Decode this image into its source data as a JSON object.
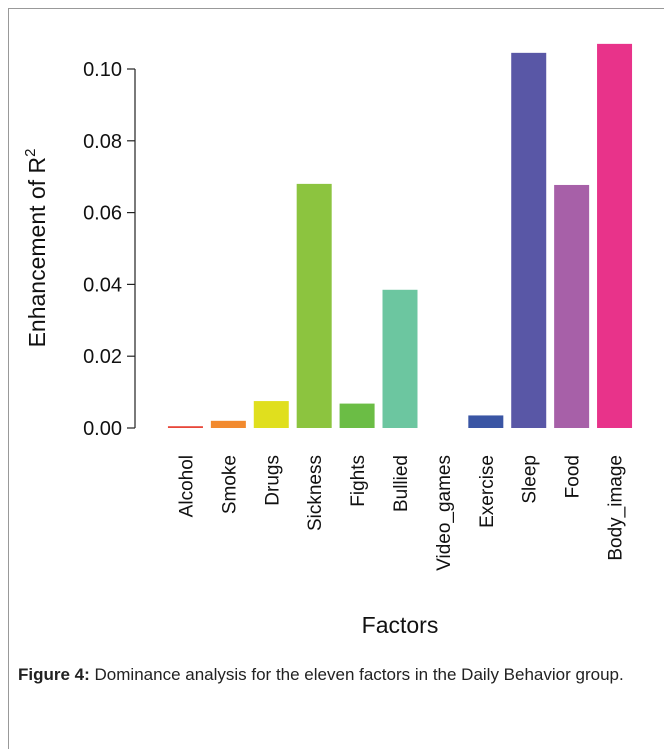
{
  "chart_data": {
    "type": "bar",
    "ylabel": "Enhancement of R",
    "ylabel_superscript": "2",
    "xlabel": "Factors",
    "categories": [
      "Alcohol",
      "Smoke",
      "Drugs",
      "Sickness",
      "Fights",
      "Bullied",
      "Video_games",
      "Exercise",
      "Sleep",
      "Food",
      "Body_image"
    ],
    "values": [
      0.0005,
      0.002,
      0.0075,
      0.068,
      0.0068,
      0.0385,
      0,
      0.0035,
      0.1045,
      0.0677,
      0.107
    ],
    "colors": [
      "#e8473a",
      "#f28a2e",
      "#e0df1e",
      "#8cc43f",
      "#6bbd45",
      "#6cc6a0",
      "#3fa6b5",
      "#3a55a4",
      "#5957a6",
      "#a760a8",
      "#e8338a"
    ],
    "ylim": [
      0,
      0.11
    ],
    "yticks": [
      {
        "value": 0,
        "label": "0.00"
      },
      {
        "value": 0.02,
        "label": "0.02"
      },
      {
        "value": 0.04,
        "label": "0.04"
      },
      {
        "value": 0.06,
        "label": "0.06"
      },
      {
        "value": 0.08,
        "label": "0.08"
      },
      {
        "value": 0.1,
        "label": "0.10"
      }
    ]
  },
  "caption": {
    "label": "Figure 4:",
    "text": "Dominance analysis for the eleven factors in the Daily Behavior group."
  }
}
